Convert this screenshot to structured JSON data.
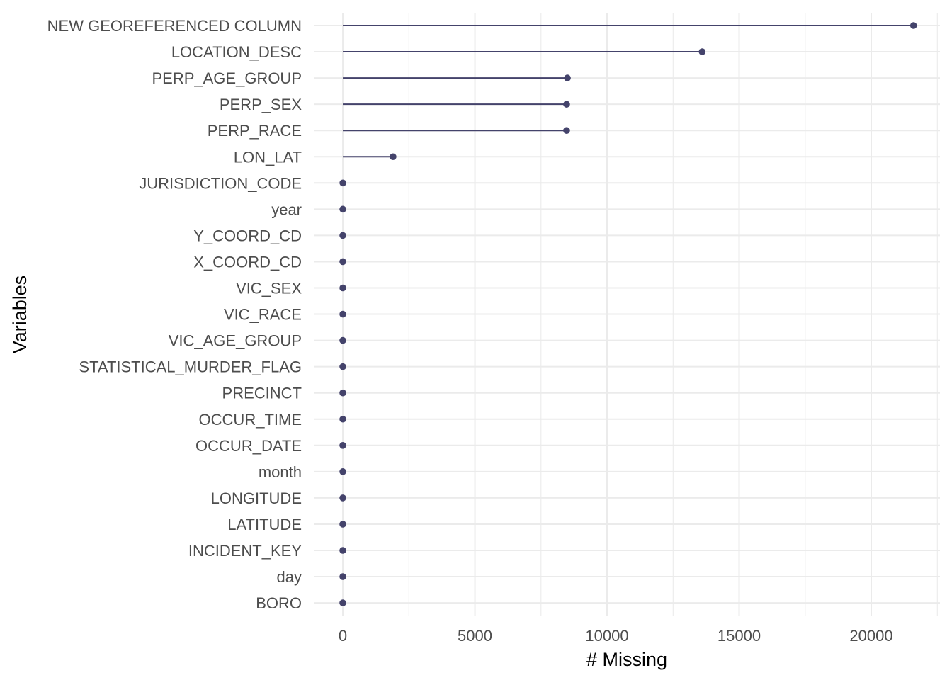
{
  "chart_data": {
    "type": "lollipop",
    "title": "",
    "xlabel": "# Missing",
    "ylabel": "Variables",
    "xlim": [
      -1100,
      22600
    ],
    "x_ticks": [
      0,
      5000,
      10000,
      15000,
      20000
    ],
    "grid": true,
    "categories": [
      "NEW GEOREFERENCED COLUMN",
      "LOCATION_DESC",
      "PERP_AGE_GROUP",
      "PERP_SEX",
      "PERP_RACE",
      "LON_LAT",
      "JURISDICTION_CODE",
      "year",
      "Y_COORD_CD",
      "X_COORD_CD",
      "VIC_SEX",
      "VIC_RACE",
      "VIC_AGE_GROUP",
      "STATISTICAL_MURDER_FLAG",
      "PRECINCT",
      "OCCUR_TIME",
      "OCCUR_DATE",
      "month",
      "LONGITUDE",
      "LATITUDE",
      "INCIDENT_KEY",
      "day",
      "BORO"
    ],
    "values": [
      21600,
      13600,
      8500,
      8470,
      8470,
      1900,
      2,
      0,
      0,
      0,
      0,
      0,
      0,
      0,
      0,
      0,
      0,
      0,
      0,
      0,
      0,
      0,
      0
    ],
    "color": "#44436b"
  }
}
